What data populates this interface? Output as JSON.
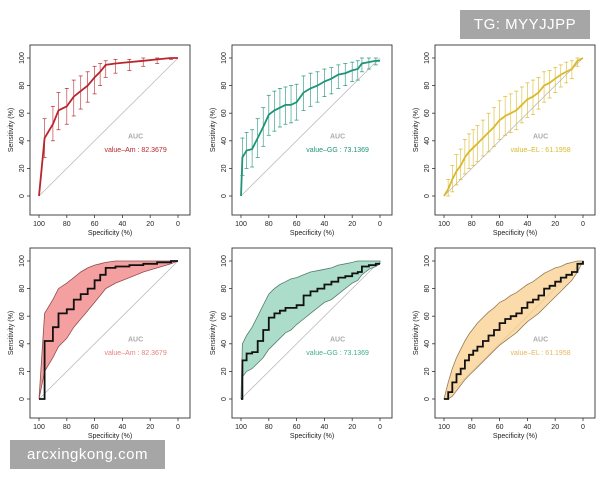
{
  "watermarks": {
    "top": "TG: MYYJJPP",
    "bottom": "arcxingkong.com"
  },
  "chart_data": [
    {
      "type": "line",
      "style": "errorbar",
      "color": "#b8262b",
      "xlabel": "Specificity (%)",
      "ylabel": "Sensitivity (%)",
      "xlim": [
        100,
        0
      ],
      "ylim": [
        0,
        100
      ],
      "xticks": [
        "100",
        "80",
        "60",
        "40",
        "20",
        "0"
      ],
      "yticks": [
        "0",
        "20",
        "40",
        "60",
        "80",
        "100"
      ],
      "auc_title": "AUC",
      "auc_label": "value–Am : 82.3679",
      "x": [
        100,
        96,
        90,
        86,
        80,
        75,
        70,
        65,
        60,
        56,
        52,
        45,
        35,
        25,
        15,
        5,
        0
      ],
      "y": [
        0,
        42,
        52,
        62,
        65,
        72,
        76,
        80,
        86,
        90,
        95,
        96,
        97,
        98,
        99,
        100,
        100
      ],
      "y_low": [
        0,
        28,
        40,
        48,
        52,
        58,
        63,
        68,
        74,
        80,
        86,
        89,
        91,
        94,
        96,
        99,
        100
      ],
      "y_high": [
        0,
        56,
        65,
        75,
        78,
        84,
        87,
        90,
        94,
        96,
        98,
        99,
        99,
        100,
        100,
        100,
        100
      ]
    },
    {
      "type": "line",
      "style": "errorbar",
      "color": "#1e9478",
      "xlabel": "Specificity (%)",
      "ylabel": "Sensitivity (%)",
      "xlim": [
        100,
        0
      ],
      "ylim": [
        0,
        100
      ],
      "xticks": [
        "100",
        "80",
        "60",
        "40",
        "20",
        "0"
      ],
      "yticks": [
        "0",
        "20",
        "40",
        "60",
        "80",
        "100"
      ],
      "auc_title": "AUC",
      "auc_label": "value–GG : 73.1369",
      "x": [
        100,
        99,
        96,
        92,
        88,
        84,
        80,
        76,
        72,
        68,
        64,
        60,
        55,
        50,
        45,
        40,
        35,
        30,
        25,
        20,
        16,
        13,
        8,
        3,
        0
      ],
      "y": [
        0,
        28,
        33,
        34,
        42,
        50,
        59,
        62,
        64,
        66,
        66,
        68,
        75,
        78,
        80,
        83,
        85,
        88,
        89,
        91,
        92,
        96,
        97,
        98,
        98
      ],
      "y_low": [
        0,
        15,
        20,
        21,
        28,
        36,
        44,
        47,
        50,
        52,
        53,
        55,
        62,
        65,
        68,
        72,
        74,
        78,
        80,
        83,
        84,
        90,
        92,
        95,
        96
      ],
      "y_high": [
        0,
        42,
        46,
        48,
        56,
        64,
        73,
        76,
        78,
        79,
        80,
        81,
        87,
        89,
        90,
        92,
        93,
        95,
        96,
        97,
        98,
        100,
        100,
        100,
        100
      ]
    },
    {
      "type": "line",
      "style": "errorbar",
      "color": "#d9b92b",
      "xlabel": "Specificity (%)",
      "ylabel": "Sensitivity (%)",
      "xlim": [
        100,
        0
      ],
      "ylim": [
        0,
        100
      ],
      "xticks": [
        "100",
        "80",
        "60",
        "40",
        "20",
        "0"
      ],
      "yticks": [
        "0",
        "20",
        "40",
        "60",
        "80",
        "100"
      ],
      "auc_title": "AUC",
      "auc_label": "value–EL : 61.1958",
      "x": [
        100,
        97,
        94,
        91,
        88,
        85,
        82,
        79,
        76,
        72,
        68,
        64,
        60,
        56,
        52,
        48,
        44,
        40,
        36,
        32,
        28,
        24,
        20,
        16,
        12,
        8,
        4,
        0
      ],
      "y": [
        0,
        5,
        12,
        18,
        22,
        28,
        32,
        35,
        38,
        42,
        46,
        50,
        55,
        58,
        60,
        62,
        66,
        70,
        72,
        75,
        80,
        82,
        85,
        88,
        90,
        92,
        98,
        100
      ],
      "y_low": [
        0,
        0,
        3,
        8,
        12,
        16,
        20,
        22,
        25,
        29,
        32,
        36,
        41,
        44,
        46,
        48,
        53,
        57,
        59,
        63,
        68,
        71,
        75,
        79,
        82,
        85,
        94,
        100
      ],
      "y_high": [
        0,
        12,
        22,
        30,
        34,
        41,
        45,
        48,
        51,
        55,
        60,
        64,
        69,
        72,
        74,
        76,
        79,
        82,
        84,
        86,
        90,
        91,
        93,
        95,
        97,
        98,
        100,
        100
      ]
    },
    {
      "type": "area",
      "style": "band",
      "color": "#f08080",
      "xlabel": "Specificity (%)",
      "ylabel": "Sensitivity (%)",
      "xlim": [
        100,
        0
      ],
      "ylim": [
        0,
        100
      ],
      "xticks": [
        "100",
        "80",
        "60",
        "40",
        "20",
        "0"
      ],
      "yticks": [
        "0",
        "20",
        "40",
        "60",
        "80",
        "100"
      ],
      "auc_title": "AUC",
      "auc_label": "value–Am : 82.3679",
      "x": [
        100,
        96,
        90,
        86,
        80,
        75,
        70,
        65,
        60,
        56,
        52,
        45,
        35,
        25,
        15,
        5,
        0
      ],
      "y": [
        0,
        42,
        52,
        62,
        65,
        72,
        76,
        80,
        86,
        90,
        95,
        96,
        97,
        98,
        99,
        100,
        100
      ],
      "y_low": [
        0,
        20,
        30,
        38,
        44,
        52,
        58,
        64,
        70,
        75,
        80,
        84,
        88,
        92,
        95,
        98,
        100
      ],
      "y_high": [
        0,
        62,
        72,
        80,
        84,
        88,
        92,
        95,
        97,
        98,
        99,
        100,
        100,
        100,
        100,
        100,
        100
      ]
    },
    {
      "type": "area",
      "style": "band",
      "color": "#8fd1b8",
      "xlabel": "Specificity (%)",
      "ylabel": "Sensitivity (%)",
      "xlim": [
        100,
        0
      ],
      "ylim": [
        0,
        100
      ],
      "xticks": [
        "100",
        "80",
        "60",
        "40",
        "20",
        "0"
      ],
      "yticks": [
        "0",
        "20",
        "40",
        "60",
        "80",
        "100"
      ],
      "auc_title": "AUC",
      "auc_label": "value–GG : 73.1369",
      "x": [
        100,
        99,
        96,
        92,
        88,
        84,
        80,
        76,
        72,
        68,
        64,
        60,
        55,
        50,
        45,
        40,
        35,
        30,
        25,
        20,
        16,
        13,
        8,
        3,
        0
      ],
      "y": [
        0,
        28,
        33,
        34,
        42,
        50,
        59,
        62,
        64,
        66,
        66,
        68,
        75,
        78,
        80,
        83,
        85,
        88,
        89,
        91,
        92,
        96,
        97,
        98,
        98
      ],
      "y_low": [
        0,
        16,
        20,
        22,
        26,
        30,
        36,
        40,
        44,
        48,
        50,
        54,
        58,
        62,
        66,
        70,
        72,
        76,
        80,
        84,
        86,
        90,
        94,
        96,
        98
      ],
      "y_high": [
        0,
        40,
        46,
        52,
        60,
        68,
        76,
        80,
        83,
        85,
        87,
        88,
        90,
        92,
        93,
        94,
        95,
        97,
        98,
        99,
        100,
        100,
        100,
        100,
        100
      ]
    },
    {
      "type": "area",
      "style": "band",
      "color": "#f9cf8c",
      "xlabel": "Specificity (%)",
      "ylabel": "Sensitivity (%)",
      "xlim": [
        100,
        0
      ],
      "ylim": [
        0,
        100
      ],
      "xticks": [
        "100",
        "80",
        "60",
        "40",
        "20",
        "0"
      ],
      "yticks": [
        "0",
        "20",
        "40",
        "60",
        "80",
        "100"
      ],
      "auc_title": "AUC",
      "auc_label": "value–EL : 61.1958",
      "x": [
        100,
        97,
        94,
        91,
        88,
        85,
        82,
        79,
        76,
        72,
        68,
        64,
        60,
        56,
        52,
        48,
        44,
        40,
        36,
        32,
        28,
        24,
        20,
        16,
        12,
        8,
        4,
        0
      ],
      "y": [
        0,
        5,
        12,
        18,
        22,
        28,
        32,
        35,
        38,
        42,
        46,
        50,
        55,
        58,
        60,
        62,
        66,
        70,
        72,
        75,
        80,
        82,
        85,
        88,
        90,
        92,
        98,
        100
      ],
      "y_low": [
        0,
        0,
        2,
        6,
        10,
        14,
        17,
        20,
        23,
        27,
        31,
        35,
        39,
        42,
        45,
        48,
        52,
        56,
        59,
        62,
        66,
        70,
        74,
        78,
        82,
        86,
        92,
        100
      ],
      "y_high": [
        0,
        12,
        22,
        30,
        36,
        42,
        47,
        51,
        55,
        59,
        63,
        66,
        70,
        72,
        75,
        77,
        80,
        83,
        85,
        88,
        91,
        93,
        95,
        96,
        98,
        99,
        100,
        100
      ]
    }
  ]
}
